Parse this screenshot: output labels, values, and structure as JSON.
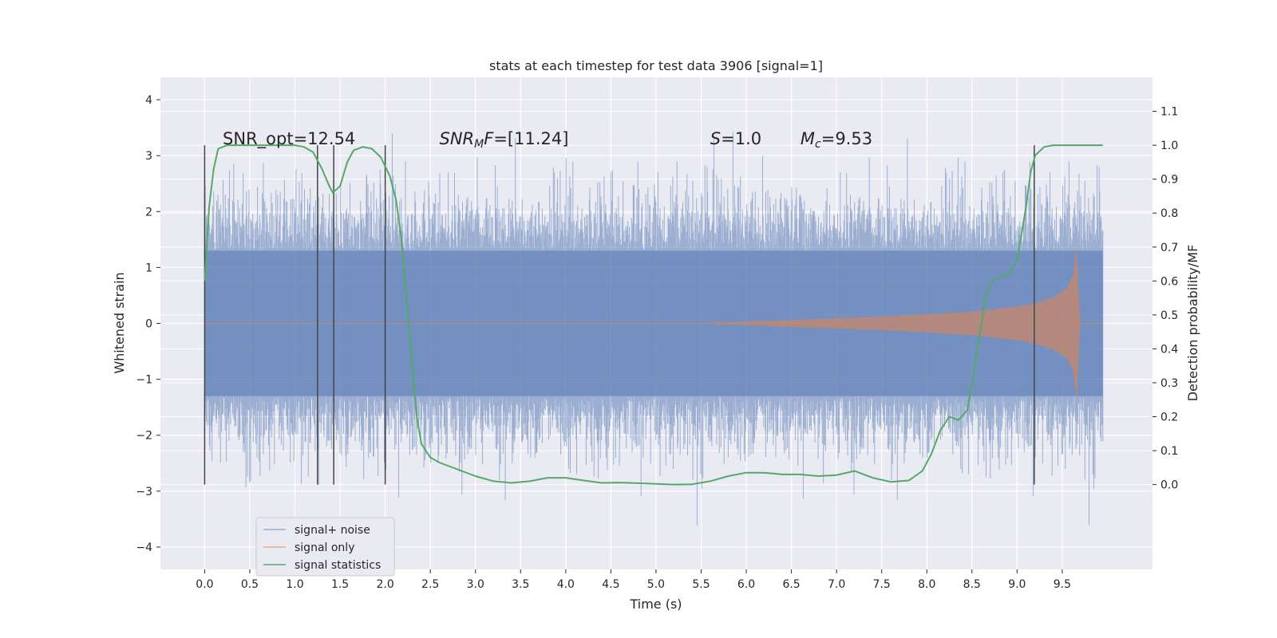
{
  "chart_data": {
    "type": "line",
    "title": "stats at each timestep for test data 3906 [signal=1]",
    "xlabel": "Time (s)",
    "ylabel": "Whitened strain",
    "y2label": "Detection probability/MF",
    "xlim": [
      -0.49,
      10.5
    ],
    "ylim": [
      -4.4,
      4.4
    ],
    "y2lim": [
      -0.25,
      1.2
    ],
    "xticks": [
      0.0,
      0.5,
      1.0,
      1.5,
      2.0,
      2.5,
      3.0,
      3.5,
      4.0,
      4.5,
      5.0,
      5.5,
      6.0,
      6.5,
      7.0,
      7.5,
      8.0,
      8.5,
      9.0,
      9.5
    ],
    "xtick_labels": [
      "0.0",
      "0.5",
      "1.0",
      "1.5",
      "2.0",
      "2.5",
      "3.0",
      "3.5",
      "4.0",
      "4.5",
      "5.0",
      "5.5",
      "6.0",
      "6.5",
      "7.0",
      "7.5",
      "8.0",
      "8.5",
      "9.0",
      "9.5"
    ],
    "yticks": [
      4,
      3,
      2,
      1,
      0,
      -1,
      -2,
      -3,
      -4
    ],
    "ytick_labels": [
      "4",
      "3",
      "2",
      "1",
      "0",
      "−1",
      "−2",
      "−3",
      "−4"
    ],
    "y2ticks": [
      1.1,
      1.0,
      0.9,
      0.8,
      0.7,
      0.6,
      0.5,
      0.4,
      0.3,
      0.2,
      0.1,
      0.0
    ],
    "y2tick_labels": [
      "1.1",
      "1.0",
      "0.9",
      "0.8",
      "0.7",
      "0.6",
      "0.5",
      "0.4",
      "0.3",
      "0.2",
      "0.1",
      "0.0"
    ],
    "grid": true,
    "legend_position": "lower-left",
    "series": [
      {
        "name": "signal+ noise",
        "axis": "left",
        "color": "#4c72b0",
        "style": "dense noise fill, ~1.3 sigma band with spikes to about ±4",
        "x_range": [
          0.0,
          9.95
        ],
        "envelope": [
          1.3,
          -1.3
        ]
      },
      {
        "name": "signal only",
        "axis": "left",
        "color": "#dd8452",
        "style": "chirp waveform growing in amplitude, peak near t=9.65",
        "x": [
          0.0,
          5.5,
          6.0,
          6.5,
          7.0,
          7.5,
          8.0,
          8.5,
          9.0,
          9.2,
          9.4,
          9.55,
          9.62,
          9.66,
          9.7,
          9.95
        ],
        "amplitude": [
          0.0,
          0.0,
          0.03,
          0.06,
          0.09,
          0.12,
          0.16,
          0.21,
          0.3,
          0.36,
          0.47,
          0.62,
          0.85,
          1.35,
          0.0,
          0.0
        ]
      },
      {
        "name": "signal statistics",
        "axis": "right",
        "color": "#55a868",
        "x": [
          0.0,
          0.05,
          0.1,
          0.15,
          0.25,
          0.4,
          0.6,
          0.8,
          1.0,
          1.1,
          1.2,
          1.3,
          1.38,
          1.42,
          1.5,
          1.58,
          1.65,
          1.75,
          1.85,
          1.95,
          2.05,
          2.12,
          2.18,
          2.22,
          2.3,
          2.35,
          2.4,
          2.5,
          2.6,
          2.8,
          3.0,
          3.2,
          3.4,
          3.6,
          3.8,
          4.0,
          4.2,
          4.4,
          4.6,
          4.8,
          5.0,
          5.2,
          5.4,
          5.6,
          5.8,
          6.0,
          6.2,
          6.4,
          6.6,
          6.8,
          7.0,
          7.2,
          7.4,
          7.6,
          7.8,
          7.95,
          8.05,
          8.15,
          8.25,
          8.35,
          8.45,
          8.55,
          8.65,
          8.72,
          8.8,
          8.9,
          9.0,
          9.1,
          9.15,
          9.2,
          9.3,
          9.4,
          9.5,
          9.7,
          9.95
        ],
        "y": [
          0.6,
          0.82,
          0.93,
          0.99,
          1.0,
          1.0,
          1.0,
          1.0,
          1.0,
          0.995,
          0.98,
          0.93,
          0.88,
          0.86,
          0.88,
          0.95,
          0.985,
          0.995,
          0.99,
          0.965,
          0.91,
          0.84,
          0.72,
          0.6,
          0.35,
          0.2,
          0.12,
          0.08,
          0.065,
          0.045,
          0.025,
          0.01,
          0.005,
          0.01,
          0.02,
          0.02,
          0.012,
          0.005,
          0.006,
          0.004,
          0.002,
          0.0,
          0.001,
          0.01,
          0.025,
          0.035,
          0.035,
          0.03,
          0.03,
          0.025,
          0.028,
          0.04,
          0.02,
          0.008,
          0.012,
          0.04,
          0.09,
          0.16,
          0.2,
          0.19,
          0.22,
          0.38,
          0.55,
          0.6,
          0.61,
          0.62,
          0.66,
          0.82,
          0.92,
          0.97,
          0.995,
          1.0,
          1.0,
          1.0,
          1.0
        ]
      }
    ],
    "vertical_markers": [
      0.0,
      1.25,
      1.43,
      2.0,
      9.19
    ],
    "annotations": [
      {
        "text": "SNR_opt=12.54",
        "x": 0.2,
        "y": 3.2
      },
      {
        "text": "SNR",
        "sub": "M",
        "tail": "F=[11.24]",
        "italic": true,
        "x": 2.6,
        "y": 3.2
      },
      {
        "text": "S",
        "tail": "=1.0",
        "italic": true,
        "x": 5.6,
        "y": 3.2
      },
      {
        "text": "M",
        "sub": "c",
        "tail": "=9.53",
        "italic": true,
        "x": 6.6,
        "y": 3.2
      }
    ]
  }
}
